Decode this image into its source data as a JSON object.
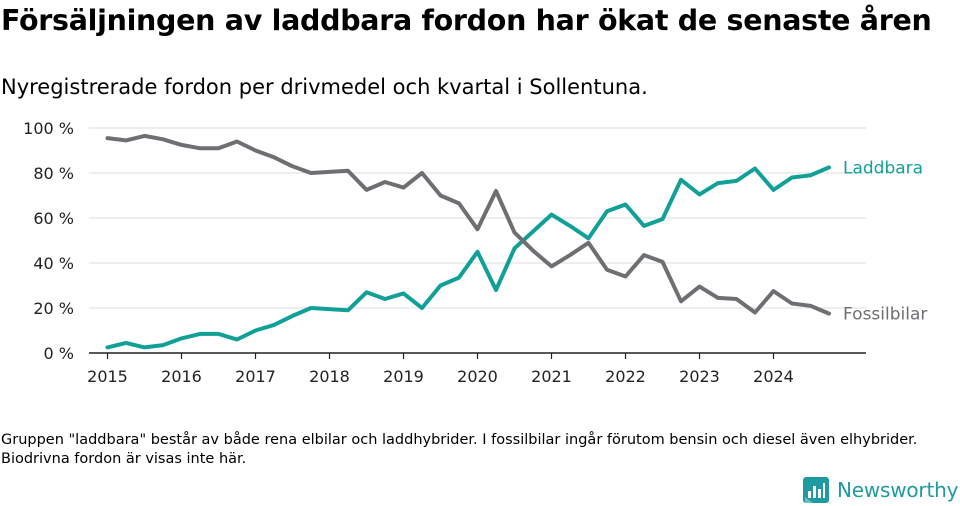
{
  "header": {
    "title": "Försäljningen av laddbara fordon har ökat de senaste åren",
    "subtitle": "Nyregistrerade fordon per drivmedel och kvartal i Sollentuna."
  },
  "footnote": "Gruppen \"laddbara\" består av både rena elbilar och laddhybrider. I fossilbilar ingår förutom bensin och diesel även elhybrider. Biodrivna fordon är visas inte här.",
  "brand": {
    "name": "Newsworthy",
    "color": "#1f9aa0"
  },
  "chart_data": {
    "type": "line",
    "title": "Försäljningen av laddbara fordon har ökat de senaste åren",
    "subtitle": "Nyregistrerade fordon per drivmedel och kvartal i Sollentuna.",
    "xlabel": "",
    "ylabel": "",
    "x_tick_labels": [
      "2015",
      "2016",
      "2017",
      "2018",
      "2019",
      "2020",
      "2021",
      "2022",
      "2023",
      "2024"
    ],
    "y_tick_labels": [
      "0 %",
      "20 %",
      "40 %",
      "60 %",
      "80 %",
      "100 %"
    ],
    "y_ticks": [
      0,
      20,
      40,
      60,
      80,
      100
    ],
    "ylim": [
      0,
      100
    ],
    "xlim": [
      2014.75,
      2025.25
    ],
    "grid": true,
    "legend": "direct labels at line ends",
    "x": [
      2015.0,
      2015.25,
      2015.5,
      2015.75,
      2016.0,
      2016.25,
      2016.5,
      2016.75,
      2017.0,
      2017.25,
      2017.5,
      2017.75,
      2018.0,
      2018.25,
      2018.5,
      2018.75,
      2019.0,
      2019.25,
      2019.5,
      2019.75,
      2020.0,
      2020.25,
      2020.5,
      2020.75,
      2021.0,
      2021.25,
      2021.5,
      2021.75,
      2022.0,
      2022.25,
      2022.5,
      2022.75,
      2023.0,
      2023.25,
      2023.5,
      2023.75,
      2024.0,
      2024.25,
      2024.5,
      2024.75
    ],
    "series": [
      {
        "name": "Laddbara",
        "color": "#11a097",
        "values": [
          2.5,
          4.5,
          2.5,
          3.5,
          6.5,
          8.5,
          8.5,
          6.0,
          10.0,
          12.5,
          16.5,
          20.0,
          19.5,
          19.0,
          27.0,
          24.0,
          26.5,
          20.0,
          30.0,
          33.5,
          45.0,
          28.0,
          46.5,
          54.0,
          61.5,
          56.5,
          51.0,
          63.0,
          66.0,
          56.5,
          59.5,
          77.0,
          70.5,
          75.5,
          76.5,
          82.0,
          72.5,
          78.0,
          79.0,
          82.5
        ]
      },
      {
        "name": "Fossilbilar",
        "color": "#6e6e73",
        "values": [
          95.5,
          94.5,
          96.5,
          95.0,
          92.5,
          91.0,
          91.0,
          94.0,
          90.0,
          87.0,
          83.0,
          80.0,
          80.5,
          81.0,
          72.5,
          76.0,
          73.5,
          80.0,
          70.0,
          66.5,
          55.0,
          72.0,
          53.5,
          45.5,
          38.5,
          43.5,
          49.0,
          37.0,
          34.0,
          43.5,
          40.5,
          23.0,
          29.5,
          24.5,
          24.0,
          18.0,
          27.5,
          22.0,
          21.0,
          17.5
        ]
      }
    ]
  }
}
